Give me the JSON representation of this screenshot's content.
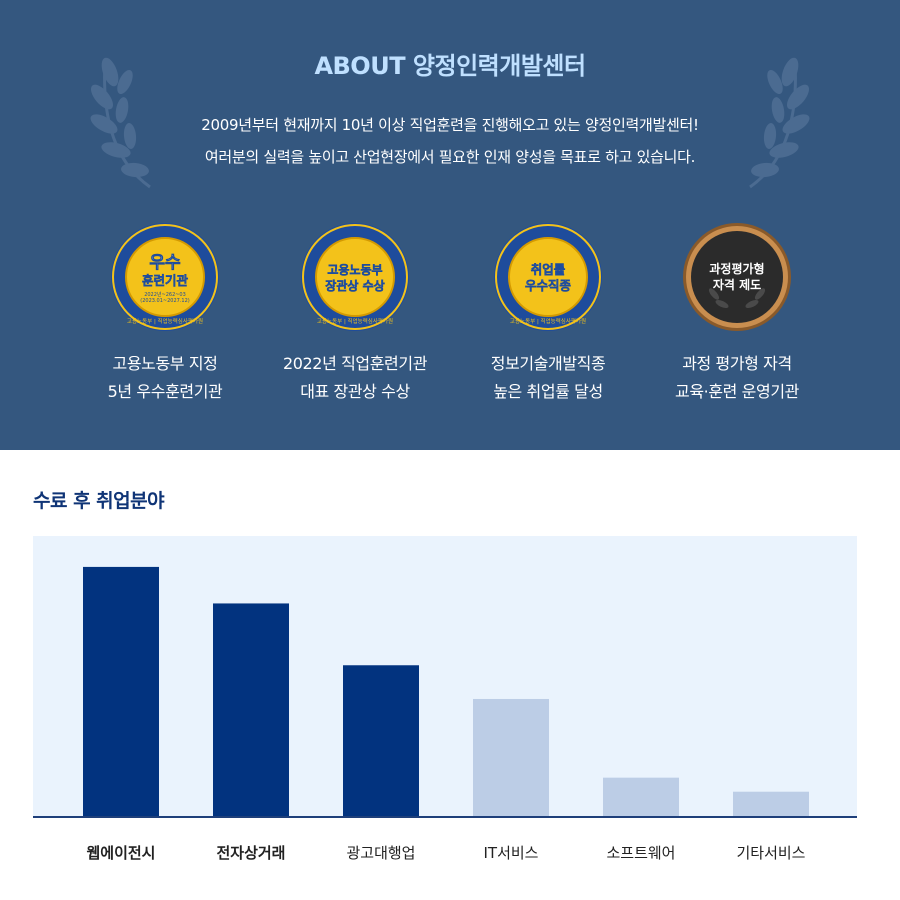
{
  "about": {
    "title": "ABOUT 양정인력개발센터",
    "line1": "2009년부터 현재까지 10년 이상 직업훈련을 진행해오고 있는 양정인력개발센터!",
    "line2": "여러분의 실력을 높이고 산업현장에서 필요한 인재 양성을 목표로 하고 있습니다."
  },
  "badges": [
    {
      "icon": "gold-award-medal-icon",
      "medal_lines": [
        "우수",
        "훈련기관"
      ],
      "medal_small": [
        "2022년~262~03",
        "(2023.01~2027.12)"
      ],
      "ring_text": "고용노동부 | 직업능력심사평가원",
      "caption": [
        "고용노동부 지정",
        "5년 우수훈련기관"
      ]
    },
    {
      "icon": "gold-award-medal-icon",
      "medal_lines": [
        "고용노동부",
        "장관상 수상"
      ],
      "ring_text": "고용노동부 | 직업능력심사평가원",
      "caption": [
        "2022년 직업훈련기관",
        "대표 장관상 수상"
      ]
    },
    {
      "icon": "gold-award-medal-icon",
      "medal_lines": [
        "취업률",
        "우수직종"
      ],
      "ring_text": "고용노동부 | 직업능력심사평가원",
      "caption": [
        "정보기술개발직종",
        "높은 취업률 달성"
      ]
    },
    {
      "icon": "bronze-award-medal-icon",
      "medal_lines": [
        "과정평가형",
        "자격 제도"
      ],
      "caption": [
        "과정 평가형 자격",
        "교육·훈련 운영기관"
      ]
    }
  ],
  "colors": {
    "banner": "#34577f",
    "dark_bar": "#02337f",
    "light_bar": "#bccde6",
    "plot_bg": "#eaf3fd",
    "gold": "#f3c21a",
    "badge_ring": "#1e4c9c"
  },
  "chart_data": {
    "type": "bar",
    "title": "수료 후 취업분야",
    "categories": [
      "웹에이전시",
      "전자상거래",
      "광고대행업",
      "IT서비스",
      "소프트웨어",
      "기타서비스"
    ],
    "values": [
      89,
      76,
      54,
      42,
      14,
      9
    ],
    "highlight": [
      true,
      true,
      true,
      false,
      false,
      false
    ],
    "bold_labels": [
      true,
      true,
      false,
      false,
      false,
      false
    ],
    "ylim": [
      0,
      100
    ],
    "grid": false,
    "legend": "none"
  }
}
